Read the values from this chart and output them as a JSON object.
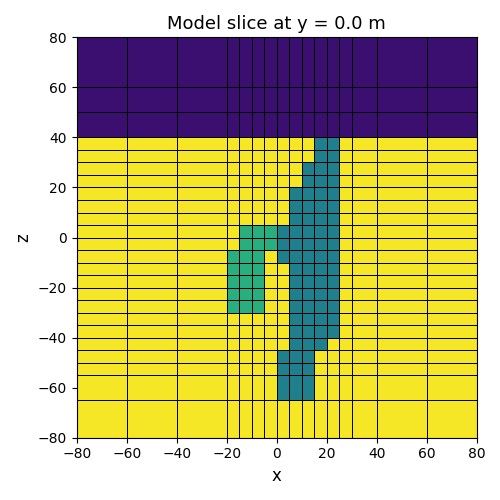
{
  "title": "Model slice at y = 0.0 m",
  "xlabel": "x",
  "ylabel": "z",
  "xlim": [
    -80,
    80
  ],
  "zlim": [
    -80,
    80
  ],
  "color_purple": "#3b0f6f",
  "color_yellow": "#f5e626",
  "color_teal_dark": "#1f7f8c",
  "color_teal_green": "#29af7f",
  "figsize": [
    5.0,
    5.0
  ],
  "dpi": 100,
  "background": "#ffffff",
  "x_edges": [
    -80,
    -60,
    -40,
    -20,
    -15,
    -10,
    -5,
    0,
    5,
    10,
    15,
    20,
    25,
    30,
    40,
    60,
    80
  ],
  "z_edges": [
    -80,
    -65,
    -55,
    -50,
    -45,
    -40,
    -35,
    -30,
    -25,
    -20,
    -15,
    -10,
    -5,
    0,
    5,
    10,
    15,
    20,
    25,
    30,
    35,
    40,
    50,
    60,
    80
  ]
}
